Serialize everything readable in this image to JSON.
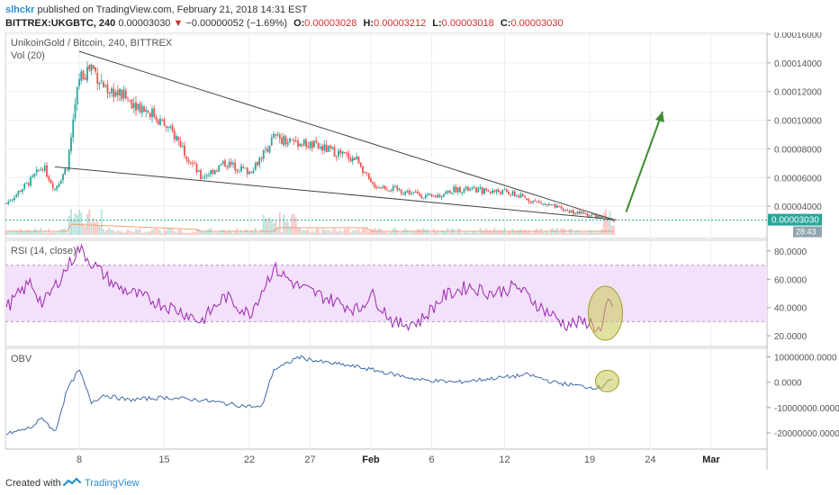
{
  "header": {
    "user": "slhckr",
    "published_text": "published on TradingView.com, February 21, 2018 14:31 EST",
    "symbol": "BITTREX:UKGBTC, 240",
    "last_price": "0.00003030",
    "change_arrow": "▼",
    "change": "−0.00000052 (−1.69%)",
    "o_label": "O:",
    "o_value": "0.00003028",
    "h_label": "H:",
    "h_value": "0.00003212",
    "l_label": "L:",
    "l_value": "0.00003018",
    "c_label": "C:",
    "c_value": "0.00003030"
  },
  "main_panel": {
    "title": "UnikoinGold / Bitcoin, 240, BITTREX",
    "volume_label": "Vol (20)",
    "y_ticks": [
      "0.00016000",
      "0.00014000",
      "0.00012000",
      "0.00010000",
      "0.00008000",
      "0.00006000",
      "0.00004000"
    ],
    "price_badge": "0.00003030",
    "price_badge_secondary": "28:43"
  },
  "rsi_panel": {
    "title": "RSI (14, close)",
    "y_ticks": [
      "80.0000",
      "60.0000",
      "40.0000",
      "20.0000"
    ]
  },
  "obv_panel": {
    "title": "OBV",
    "y_ticks": [
      "10000000.0000",
      "0.0000",
      "-10000000.0000",
      "-20000000.0000"
    ]
  },
  "x_axis": {
    "labels": [
      "8",
      "15",
      "22",
      "27",
      "Feb",
      "6",
      "12",
      "19",
      "24",
      "Mar"
    ]
  },
  "footer": {
    "created_with": "Created with",
    "brand": "TradingView"
  },
  "colors": {
    "up": "#26a69a",
    "down": "#ef5350",
    "rsi_line": "#9c27b0",
    "rsi_band": "#f3e0fa",
    "obv_line": "#3f6aa8",
    "arrow": "#3c8c2e",
    "highlight": "#c8c850",
    "trendline": "#444444"
  },
  "chart_data": [
    {
      "type": "candlestick",
      "title": "UnikoinGold / Bitcoin, 240, BITTREX",
      "ylim": [
        2e-05,
        0.00016
      ],
      "x_range": [
        "2018-01-02",
        "2018-03-04"
      ],
      "close_keypoints": [
        [
          "2018-01-02",
          4.2e-05
        ],
        [
          "2018-01-04",
          5.8e-05
        ],
        [
          "2018-01-05",
          6.8e-05
        ],
        [
          "2018-01-06",
          5.2e-05
        ],
        [
          "2018-01-07",
          6.8e-05
        ],
        [
          "2018-01-08",
          0.00013
        ],
        [
          "2018-01-09",
          0.000138
        ],
        [
          "2018-01-10",
          0.000124
        ],
        [
          "2018-01-12",
          0.000115
        ],
        [
          "2018-01-14",
          0.000105
        ],
        [
          "2018-01-16",
          8.8e-05
        ],
        [
          "2018-01-18",
          6e-05
        ],
        [
          "2018-01-20",
          7e-05
        ],
        [
          "2018-01-22",
          6.4e-05
        ],
        [
          "2018-01-23",
          7.5e-05
        ],
        [
          "2018-01-24",
          8.8e-05
        ],
        [
          "2018-01-26",
          8.5e-05
        ],
        [
          "2018-01-29",
          7.8e-05
        ],
        [
          "2018-01-31",
          7.2e-05
        ],
        [
          "2018-02-01",
          5.5e-05
        ],
        [
          "2018-02-04",
          5e-05
        ],
        [
          "2018-02-06",
          4.6e-05
        ],
        [
          "2018-02-08",
          5.2e-05
        ],
        [
          "2018-02-12",
          5e-05
        ],
        [
          "2018-02-15",
          4.2e-05
        ],
        [
          "2018-02-17",
          3.7e-05
        ],
        [
          "2018-02-19",
          3.4e-05
        ],
        [
          "2018-02-21",
          3.03e-05
        ]
      ]
    },
    {
      "type": "line",
      "title": "RSI (14, close)",
      "ylim": [
        15,
        85
      ],
      "band": [
        30,
        70
      ],
      "points": [
        [
          "2018-01-02",
          40
        ],
        [
          "2018-01-04",
          58
        ],
        [
          "2018-01-05",
          42
        ],
        [
          "2018-01-06",
          55
        ],
        [
          "2018-01-08",
          82
        ],
        [
          "2018-01-09",
          72
        ],
        [
          "2018-01-11",
          55
        ],
        [
          "2018-01-13",
          48
        ],
        [
          "2018-01-15",
          42
        ],
        [
          "2018-01-17",
          35
        ],
        [
          "2018-01-18",
          30
        ],
        [
          "2018-01-20",
          48
        ],
        [
          "2018-01-22",
          35
        ],
        [
          "2018-01-24",
          68
        ],
        [
          "2018-01-26",
          55
        ],
        [
          "2018-01-28",
          48
        ],
        [
          "2018-01-31",
          38
        ],
        [
          "2018-02-01",
          50
        ],
        [
          "2018-02-03",
          28
        ],
        [
          "2018-02-05",
          30
        ],
        [
          "2018-02-07",
          48
        ],
        [
          "2018-02-09",
          55
        ],
        [
          "2018-02-11",
          50
        ],
        [
          "2018-02-13",
          55
        ],
        [
          "2018-02-15",
          40
        ],
        [
          "2018-02-17",
          28
        ],
        [
          "2018-02-19",
          30
        ],
        [
          "2018-02-20",
          22
        ],
        [
          "2018-02-20T12",
          45
        ],
        [
          "2018-02-21",
          38
        ]
      ]
    },
    {
      "type": "line",
      "title": "OBV",
      "ylim": [
        -25000000,
        12000000
      ],
      "points": [
        [
          "2018-01-02",
          -20500000
        ],
        [
          "2018-01-04",
          -18000000
        ],
        [
          "2018-01-05",
          -14000000
        ],
        [
          "2018-01-06",
          -20000000
        ],
        [
          "2018-01-07",
          -3000000
        ],
        [
          "2018-01-08",
          5000000
        ],
        [
          "2018-01-09",
          -8000000
        ],
        [
          "2018-01-10",
          -5000000
        ],
        [
          "2018-01-12",
          -7000000
        ],
        [
          "2018-01-15",
          -6000000
        ],
        [
          "2018-01-18",
          -7000000
        ],
        [
          "2018-01-21",
          -9000000
        ],
        [
          "2018-01-23",
          -10000000
        ],
        [
          "2018-01-24",
          5000000
        ],
        [
          "2018-01-25",
          7000000
        ],
        [
          "2018-01-26",
          10000000
        ],
        [
          "2018-01-28",
          8000000
        ],
        [
          "2018-01-31",
          6000000
        ],
        [
          "2018-02-02",
          4000000
        ],
        [
          "2018-02-05",
          1000000
        ],
        [
          "2018-02-08",
          0
        ],
        [
          "2018-02-12",
          2000000
        ],
        [
          "2018-02-14",
          3000000
        ],
        [
          "2018-02-16",
          0
        ],
        [
          "2018-02-19",
          -2000000
        ],
        [
          "2018-02-20",
          -2000000
        ],
        [
          "2018-02-20T12",
          1000000
        ],
        [
          "2018-02-21",
          1000000
        ]
      ]
    }
  ]
}
